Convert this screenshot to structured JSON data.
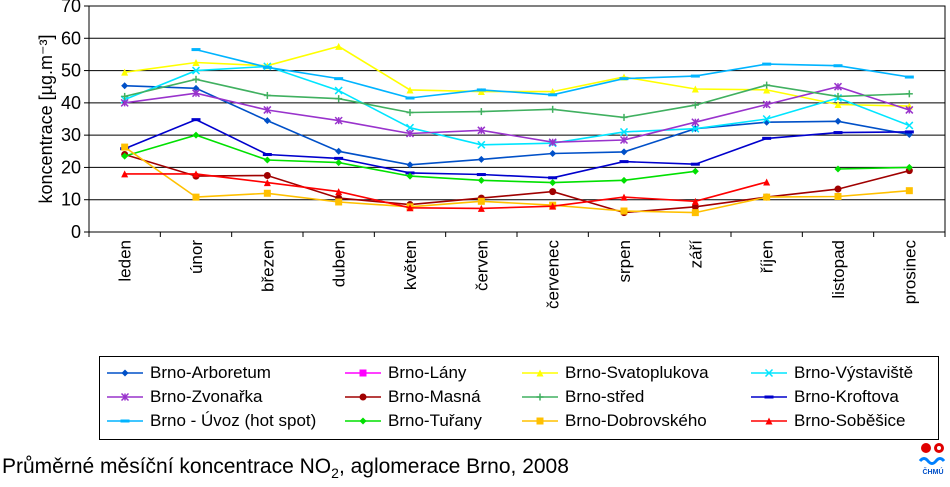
{
  "chart_data": {
    "type": "line",
    "ylabel": "koncentrace [µg.m⁻³]",
    "ylim": [
      0,
      70
    ],
    "yticks": [
      0,
      10,
      20,
      30,
      40,
      50,
      60,
      70
    ],
    "grid": true,
    "legend_position": "bottom",
    "categories": [
      "leden",
      "únor",
      "březen",
      "duben",
      "květen",
      "červen",
      "červenec",
      "srpen",
      "září",
      "říjen",
      "listopad",
      "prosinec"
    ],
    "series": [
      {
        "name": "Brno-Arboretum",
        "color": "#0050c8",
        "marker": "diamond",
        "values": [
          45.3,
          44.5,
          34.5,
          25.0,
          20.8,
          22.5,
          24.3,
          24.8,
          32.0,
          34.0,
          34.3,
          30.2
        ]
      },
      {
        "name": "Brno-Lány",
        "color": "#ff00ff",
        "marker": "square",
        "values": [
          null,
          null,
          null,
          null,
          null,
          null,
          null,
          null,
          null,
          null,
          null,
          null
        ]
      },
      {
        "name": "Brno-Svatoplukova",
        "color": "#ffff00",
        "marker": "triangle",
        "values": [
          49.5,
          52.5,
          51.5,
          57.5,
          44.0,
          43.5,
          43.5,
          48.0,
          44.3,
          44.0,
          39.5,
          39.0
        ]
      },
      {
        "name": "Brno-Výstaviště",
        "color": "#00e5ff",
        "marker": "x",
        "values": [
          41.0,
          50.0,
          51.3,
          43.8,
          32.3,
          27.0,
          27.5,
          31.0,
          32.0,
          35.0,
          41.5,
          33.0
        ]
      },
      {
        "name": "Brno-Zvonařka",
        "color": "#9933cc",
        "marker": "star",
        "values": [
          40.0,
          43.0,
          37.8,
          34.5,
          30.5,
          31.5,
          27.8,
          28.5,
          34.0,
          39.5,
          45.0,
          37.8
        ]
      },
      {
        "name": "Brno-Masná",
        "color": "#a00000",
        "marker": "circle",
        "values": [
          24.0,
          17.3,
          17.5,
          10.5,
          8.5,
          10.5,
          12.5,
          6.0,
          7.8,
          10.8,
          13.3,
          19.0
        ]
      },
      {
        "name": "Brno-střed",
        "color": "#40b060",
        "marker": "plus",
        "values": [
          42.0,
          47.3,
          42.3,
          41.3,
          37.0,
          37.3,
          38.0,
          35.5,
          39.3,
          45.5,
          42.0,
          42.8
        ]
      },
      {
        "name": "Brno-Kroftova",
        "color": "#0000cc",
        "marker": "dash",
        "values": [
          25.8,
          34.8,
          24.0,
          22.8,
          18.3,
          17.8,
          16.8,
          21.8,
          21.0,
          29.0,
          30.8,
          31.0
        ]
      },
      {
        "name": "Brno - Úvoz (hot spot)",
        "color": "#00b4ff",
        "marker": "dash",
        "values": [
          null,
          56.5,
          51.0,
          47.5,
          41.5,
          44.0,
          42.5,
          47.5,
          48.3,
          52.0,
          51.5,
          48.0
        ]
      },
      {
        "name": "Brno-Tuřany",
        "color": "#00e000",
        "marker": "diamond",
        "values": [
          23.5,
          30.0,
          22.3,
          21.5,
          17.3,
          16.0,
          15.3,
          16.0,
          18.8,
          null,
          19.5,
          20.0
        ]
      },
      {
        "name": "Brno-Dobrovského",
        "color": "#ffc000",
        "marker": "square",
        "values": [
          26.3,
          10.8,
          12.0,
          9.3,
          7.8,
          9.5,
          8.3,
          6.5,
          6.0,
          10.8,
          11.0,
          12.8
        ]
      },
      {
        "name": "Brno-Soběšice",
        "color": "#ff0000",
        "marker": "triangle",
        "values": [
          18.0,
          18.0,
          15.3,
          12.5,
          7.5,
          7.3,
          8.0,
          10.8,
          9.5,
          15.5,
          null,
          null
        ]
      }
    ]
  },
  "caption": {
    "prefix": "Průměrné měsíční koncentrace NO",
    "sub": "2",
    "suffix": ", aglomerace Brno, 2008"
  },
  "logo": {
    "text": "ČHMÚ"
  }
}
